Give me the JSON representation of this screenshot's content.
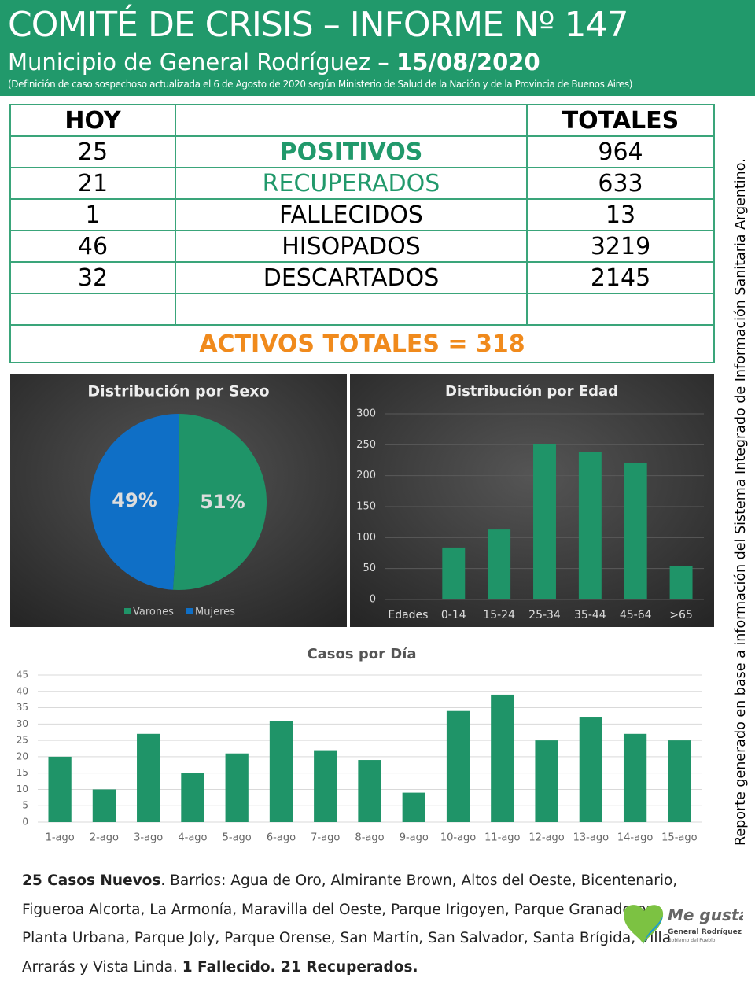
{
  "header": {
    "title": "COMITÉ DE CRISIS – INFORME Nº 147",
    "subtitle": "Municipio de General Rodríguez –",
    "date": "15/08/2020",
    "note": "(Definición de caso sospechoso actualizada el 6 de Agosto de 2020 según Ministerio de Salud de la Nación y de la Provincia de Buenos Aires)"
  },
  "table": {
    "col_today": "HOY",
    "col_total": "TOTALES",
    "rows": [
      {
        "today": "25",
        "label": "POSITIVOS",
        "total": "964"
      },
      {
        "today": "21",
        "label": "RECUPERADOS",
        "total": "633"
      },
      {
        "today": "1",
        "label": "FALLECIDOS",
        "total": "13"
      },
      {
        "today": "46",
        "label": "HISOPADOS",
        "total": "3219"
      },
      {
        "today": "32",
        "label": "DESCARTADOS",
        "total": "2145"
      }
    ],
    "active": "ACTIVOS TOTALES = 318"
  },
  "chart_data": [
    {
      "type": "pie",
      "title": "Distribución por Sexo",
      "categories": [
        "Varones",
        "Mujeres"
      ],
      "values": [
        51,
        49
      ],
      "value_labels": [
        "51%",
        "49%"
      ],
      "colors": [
        "#1f9468",
        "#0f6fc6"
      ]
    },
    {
      "type": "bar",
      "title": "Distribución por Edad",
      "xlabel": "Edades",
      "categories": [
        "0-14",
        "15-24",
        "25-34",
        "35-44",
        "45-64",
        ">65"
      ],
      "values": [
        84,
        113,
        251,
        238,
        221,
        54
      ],
      "color": "#1f9468",
      "ylim": [
        0,
        300
      ],
      "yticks": [
        0,
        50,
        100,
        150,
        200,
        250,
        300
      ],
      "grid": true
    },
    {
      "type": "bar",
      "title": "Casos por Día",
      "categories": [
        "1-ago",
        "2-ago",
        "3-ago",
        "4-ago",
        "5-ago",
        "6-ago",
        "7-ago",
        "8-ago",
        "9-ago",
        "10-ago",
        "11-ago",
        "12-ago",
        "13-ago",
        "14-ago",
        "15-ago"
      ],
      "values": [
        20,
        10,
        27,
        15,
        21,
        31,
        22,
        19,
        9,
        34,
        39,
        25,
        32,
        27,
        25
      ],
      "color": "#1f9468",
      "ylim": [
        0,
        45
      ],
      "yticks": [
        0,
        5,
        10,
        15,
        20,
        25,
        30,
        35,
        40,
        45
      ],
      "grid": true
    }
  ],
  "footer": {
    "lead": "25 Casos Nuevos",
    "text": ". Barrios: Agua de Oro, Almirante Brown, Altos del Oeste, Bicentenario, Figueroa Alcorta, La Armonía, Maravilla del Oeste, Parque Irigoyen, Parque Granaderos, Planta Urbana, Parque Joly, Parque Orense, San Martín, San Salvador, Santa Brígida, Villa Arrarás y Vista Linda.",
    "tail": "1 Fallecido. 21 Recuperados."
  },
  "side_note": "Reporte generado en base a información del Sistema Integrado de Información Sanitaria Argentino.",
  "logo": {
    "name": "Me gusta",
    "place": "General Rodríguez",
    "motto": "Gobierno del Pueblo"
  }
}
